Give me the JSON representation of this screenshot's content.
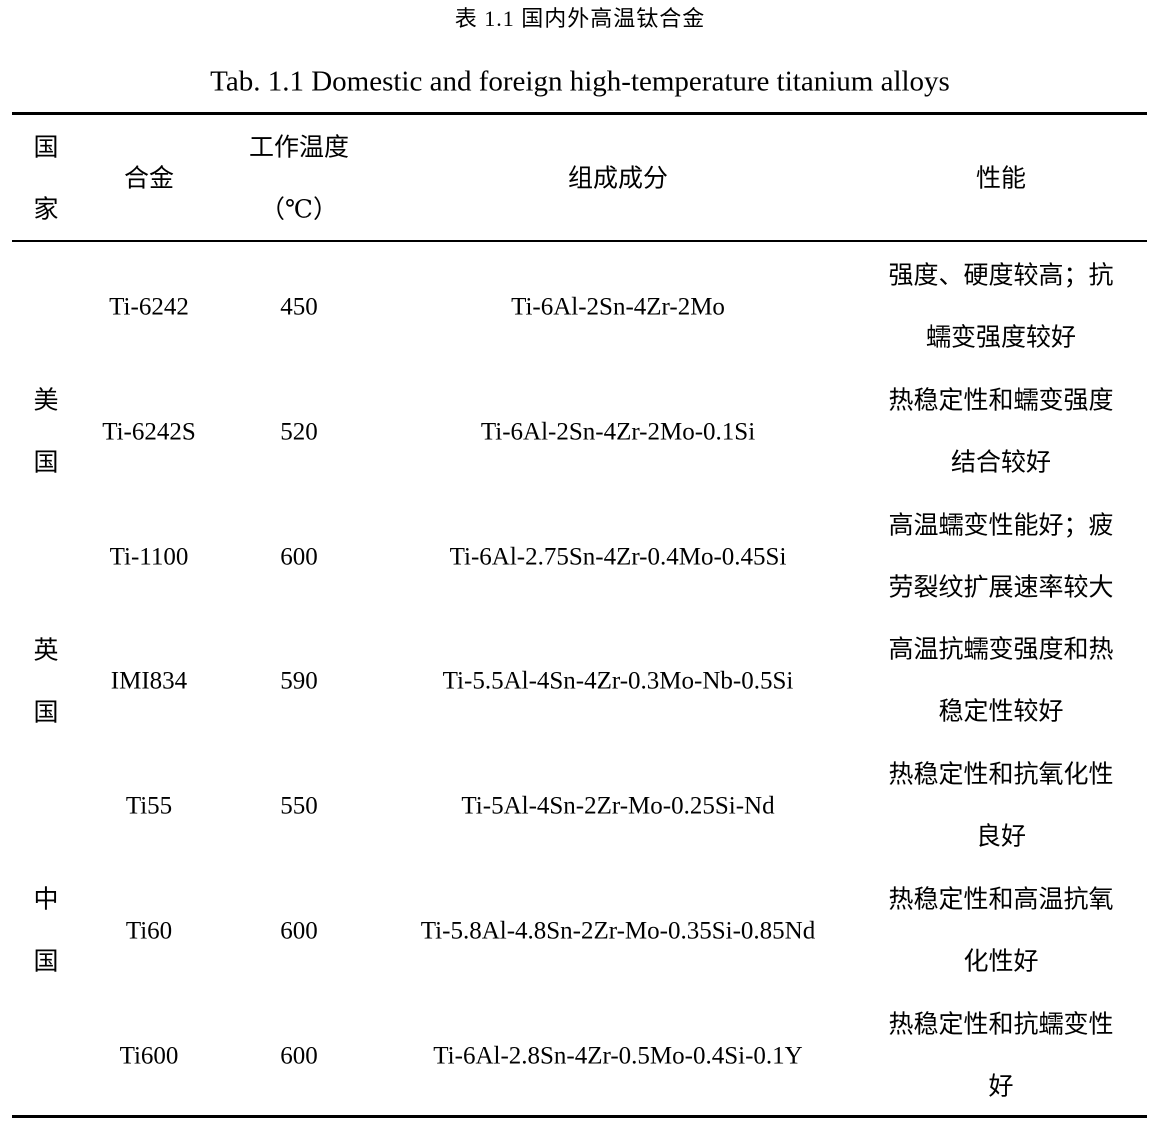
{
  "caption_cn": "表 1.1  国内外高温钛合金",
  "caption_en": "Tab. 1.1 Domestic and foreign high-temperature titanium alloys",
  "headers": {
    "country": [
      "国",
      "家"
    ],
    "alloy": "合金",
    "temp": [
      "工作温度",
      "（℃）"
    ],
    "composition": "组成成分",
    "properties": "性能"
  },
  "countries": [
    {
      "chars": [
        "美",
        "国"
      ]
    },
    {
      "chars": [
        "英",
        "国"
      ]
    },
    {
      "chars": [
        "中",
        "国"
      ]
    }
  ],
  "rows": [
    {
      "alloy": "Ti-6242",
      "temp": "450",
      "composition": "Ti-6Al-2Sn-4Zr-2Mo",
      "properties": [
        "强度、硬度较高；抗",
        "蠕变强度较好"
      ]
    },
    {
      "alloy": "Ti-6242S",
      "temp": "520",
      "composition": "Ti-6Al-2Sn-4Zr-2Mo-0.1Si",
      "properties": [
        "热稳定性和蠕变强度",
        "结合较好"
      ]
    },
    {
      "alloy": "Ti-1100",
      "temp": "600",
      "composition": "Ti-6Al-2.75Sn-4Zr-0.4Mo-0.45Si",
      "properties": [
        "高温蠕变性能好；疲",
        "劳裂纹扩展速率较大"
      ]
    },
    {
      "alloy": "IMI834",
      "temp": "590",
      "composition": "Ti-5.5Al-4Sn-4Zr-0.3Mo-Nb-0.5Si",
      "properties": [
        "高温抗蠕变强度和热",
        "稳定性较好"
      ]
    },
    {
      "alloy": "Ti55",
      "temp": "550",
      "composition": "Ti-5Al-4Sn-2Zr-Mo-0.25Si-Nd",
      "properties": [
        "热稳定性和抗氧化性",
        "良好"
      ]
    },
    {
      "alloy": "Ti60",
      "temp": "600",
      "composition": "Ti-5.8Al-4.8Sn-2Zr-Mo-0.35Si-0.85Nd",
      "properties": [
        "热稳定性和高温抗氧",
        "化性好"
      ]
    },
    {
      "alloy": "Ti600",
      "temp": "600",
      "composition": "Ti-6Al-2.8Sn-4Zr-0.5Mo-0.4Si-0.1Y",
      "properties": [
        "热稳定性和抗蠕变性",
        "好"
      ]
    }
  ]
}
